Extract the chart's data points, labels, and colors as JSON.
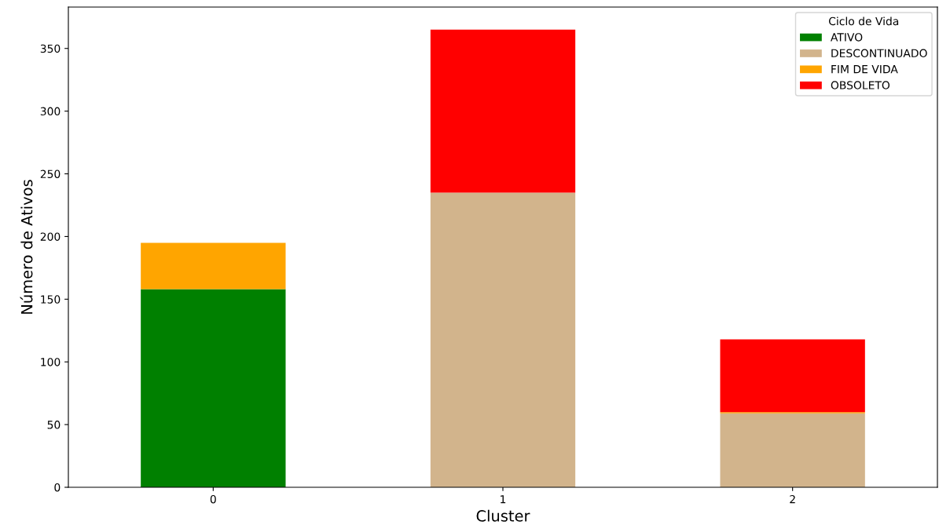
{
  "chart_data": {
    "type": "bar",
    "stacked": true,
    "xlabel": "Cluster",
    "ylabel": "Número de Ativos",
    "legend_title": "Ciclo de Vida",
    "legend": "top right",
    "categories": [
      "0",
      "1",
      "2"
    ],
    "series": [
      {
        "name": "ATIVO",
        "color": "#008000",
        "values": [
          158,
          0,
          0
        ]
      },
      {
        "name": "DESCONTINUADO",
        "color": "#d2b48c",
        "values": [
          0,
          235,
          59
        ]
      },
      {
        "name": "FIM DE VIDA",
        "color": "#ffa500",
        "values": [
          37,
          0,
          1
        ]
      },
      {
        "name": "OBSOLETO",
        "color": "#ff0000",
        "values": [
          0,
          130,
          58
        ]
      }
    ],
    "ylim": [
      0,
      383
    ],
    "yticks": [
      0,
      50,
      100,
      150,
      200,
      250,
      300,
      350
    ],
    "grid": false
  }
}
